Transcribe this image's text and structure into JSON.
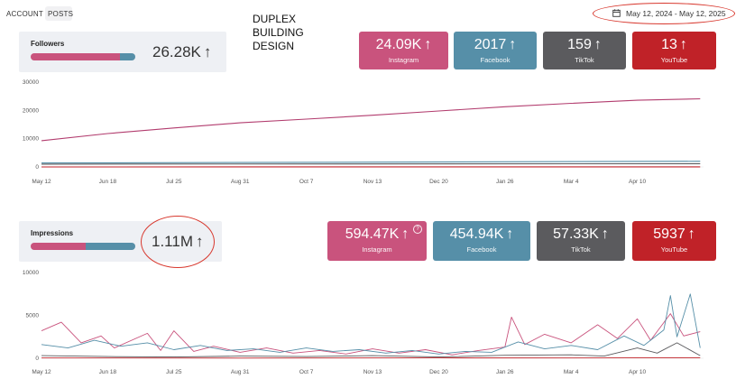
{
  "nav": {
    "account": "ACCOUNT",
    "posts": "POSTS"
  },
  "page_title_lines": [
    "DUPLEX",
    "BUILDING",
    "DESIGN"
  ],
  "date_range": {
    "label": "May 12, 2024 - May 12, 2025",
    "icon": "calendar-icon"
  },
  "arrow_glyph": "↑",
  "followers": {
    "label": "Followers",
    "total": "26.28K",
    "bar_split": [
      0.85,
      0.15
    ],
    "platforms": [
      {
        "name": "Instagram",
        "value": "24.09K",
        "color": "#c9537d"
      },
      {
        "name": "Facebook",
        "value": "2017",
        "color": "#568fa8"
      },
      {
        "name": "TikTok",
        "value": "159",
        "color": "#5b5b5e"
      },
      {
        "name": "YouTube",
        "value": "13",
        "color": "#c02228"
      }
    ]
  },
  "impressions": {
    "label": "Impressions",
    "total": "1.11M",
    "bar_split": [
      0.53,
      0.47
    ],
    "platforms": [
      {
        "name": "Instagram",
        "value": "594.47K",
        "color": "#c9537d"
      },
      {
        "name": "Facebook",
        "value": "454.94K",
        "color": "#568fa8"
      },
      {
        "name": "TikTok",
        "value": "57.33K",
        "color": "#5b5b5e"
      },
      {
        "name": "YouTube",
        "value": "5937",
        "color": "#c02228"
      }
    ]
  },
  "chart_data": [
    {
      "type": "line",
      "x_labels": [
        "May 12",
        "Jun 18",
        "Jul 25",
        "Aug 31",
        "Oct 7",
        "Nov 13",
        "Dec 20",
        "Jan 26",
        "Mar 4",
        "Apr 10"
      ],
      "y_ticks": [
        30000,
        20000,
        10000,
        0
      ],
      "ylim": [
        0,
        30000
      ],
      "series": [
        {
          "color": "#b23c6e",
          "points": [
            [
              0,
              9300
            ],
            [
              1,
              11800
            ],
            [
              2,
              13800
            ],
            [
              3,
              15600
            ],
            [
              4,
              16900
            ],
            [
              5,
              18300
            ],
            [
              6,
              19800
            ],
            [
              7,
              21300
            ],
            [
              8,
              22500
            ],
            [
              9,
              23600
            ],
            [
              9.95,
              24100
            ]
          ]
        },
        {
          "color": "#568fa8",
          "points": [
            [
              0,
              1400
            ],
            [
              5,
              1700
            ],
            [
              9.95,
              2000
            ]
          ]
        },
        {
          "color": "#5b5b5e",
          "points": [
            [
              0,
              1000
            ],
            [
              9.95,
              1150
            ]
          ]
        },
        {
          "color": "#c02228",
          "points": [
            [
              0,
              0
            ],
            [
              9.95,
              30
            ]
          ]
        }
      ]
    },
    {
      "type": "line",
      "x_labels": [
        "May 12",
        "Jun 18",
        "Jul 25",
        "Aug 31",
        "Oct 7",
        "Nov 13",
        "Dec 20",
        "Jan 26",
        "Mar 4",
        "Apr 10"
      ],
      "y_ticks": [
        10000,
        5000,
        0
      ],
      "ylim": [
        0,
        10000
      ],
      "series": [
        {
          "color": "#c9537d",
          "points": [
            [
              0,
              3200
            ],
            [
              0.3,
              4200
            ],
            [
              0.6,
              1800
            ],
            [
              0.9,
              2600
            ],
            [
              1.1,
              1200
            ],
            [
              1.6,
              2900
            ],
            [
              1.8,
              900
            ],
            [
              2,
              3200
            ],
            [
              2.3,
              800
            ],
            [
              2.6,
              1400
            ],
            [
              3,
              700
            ],
            [
              3.4,
              1200
            ],
            [
              3.8,
              600
            ],
            [
              4.2,
              900
            ],
            [
              4.6,
              500
            ],
            [
              5,
              1100
            ],
            [
              5.4,
              600
            ],
            [
              5.8,
              1000
            ],
            [
              6.2,
              400
            ],
            [
              6.6,
              900
            ],
            [
              7,
              1300
            ],
            [
              7.1,
              4800
            ],
            [
              7.3,
              1600
            ],
            [
              7.6,
              2800
            ],
            [
              8,
              1800
            ],
            [
              8.4,
              3900
            ],
            [
              8.7,
              2300
            ],
            [
              9,
              4600
            ],
            [
              9.2,
              2100
            ],
            [
              9.5,
              5200
            ],
            [
              9.7,
              2600
            ],
            [
              9.95,
              3100
            ]
          ]
        },
        {
          "color": "#568fa8",
          "points": [
            [
              0,
              1600
            ],
            [
              0.4,
              1200
            ],
            [
              0.8,
              2100
            ],
            [
              1.2,
              1400
            ],
            [
              1.6,
              1800
            ],
            [
              2,
              1000
            ],
            [
              2.4,
              1500
            ],
            [
              2.8,
              900
            ],
            [
              3.2,
              1100
            ],
            [
              3.6,
              700
            ],
            [
              4,
              1200
            ],
            [
              4.4,
              800
            ],
            [
              4.8,
              1000
            ],
            [
              5.2,
              600
            ],
            [
              5.6,
              900
            ],
            [
              6,
              500
            ],
            [
              6.4,
              800
            ],
            [
              6.8,
              700
            ],
            [
              7.2,
              1900
            ],
            [
              7.6,
              1100
            ],
            [
              8,
              1500
            ],
            [
              8.4,
              1000
            ],
            [
              8.8,
              2600
            ],
            [
              9.1,
              1500
            ],
            [
              9.4,
              3300
            ],
            [
              9.5,
              7300
            ],
            [
              9.6,
              2500
            ],
            [
              9.8,
              7500
            ],
            [
              9.95,
              1200
            ]
          ]
        },
        {
          "color": "#5b5b5e",
          "points": [
            [
              0,
              300
            ],
            [
              1,
              200
            ],
            [
              2,
              150
            ],
            [
              3,
              250
            ],
            [
              4,
              200
            ],
            [
              5,
              300
            ],
            [
              6,
              150
            ],
            [
              7,
              350
            ],
            [
              8,
              400
            ],
            [
              8.5,
              250
            ],
            [
              9,
              1200
            ],
            [
              9.3,
              600
            ],
            [
              9.6,
              1800
            ],
            [
              9.95,
              300
            ]
          ]
        },
        {
          "color": "#c02228",
          "points": [
            [
              0,
              30
            ],
            [
              3,
              20
            ],
            [
              6,
              40
            ],
            [
              8,
              30
            ],
            [
              9.95,
              60
            ]
          ]
        }
      ]
    }
  ]
}
